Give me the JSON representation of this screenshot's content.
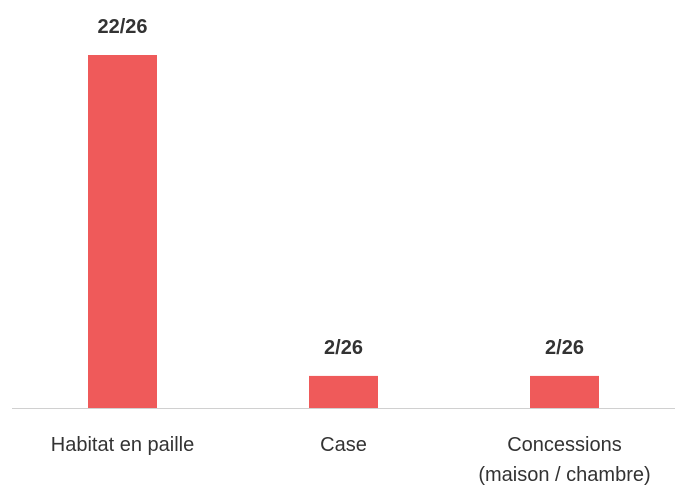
{
  "chart_data": {
    "type": "bar",
    "categories": [
      "Habitat en paille",
      "Case",
      "Concessions\n(maison / chambre)"
    ],
    "values": [
      22,
      2,
      2
    ],
    "value_labels": [
      "22/26",
      "2/26",
      "2/26"
    ],
    "color": "#ef5a5a",
    "ylim": [
      0,
      22
    ]
  }
}
